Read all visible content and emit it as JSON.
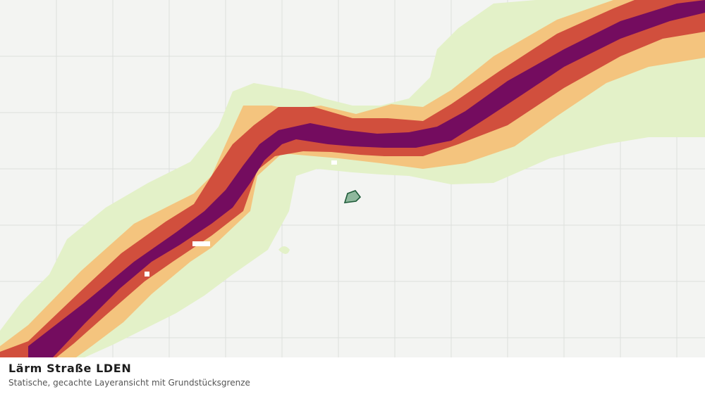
{
  "layer": {
    "title": "Lärm Straße LDEN",
    "subtitle": "Statische, gecachte Layeransicht mit Grundstücksgrenze"
  },
  "colors": {
    "background": "#f3f4f2",
    "grid": "#dddfdc",
    "band_outer": "#e3f1c8",
    "band_mid": "#f4c47e",
    "band_inner": "#d14f3d",
    "band_core": "#740c5f",
    "parcel_fill": "#8fb89d",
    "parcel_stroke": "#1f5c3a"
  },
  "icons": [
    "noise-road-band",
    "parcel-boundary"
  ]
}
